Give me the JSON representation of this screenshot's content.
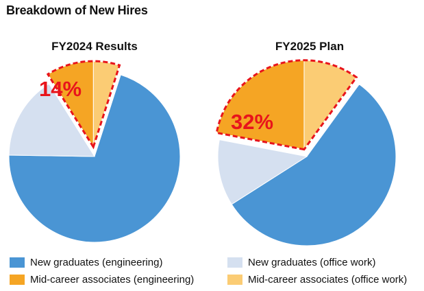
{
  "title": "Breakdown of New Hires",
  "colors": {
    "new_grad_eng": "#4a95d4",
    "new_grad_office": "#d5e0f0",
    "mid_eng": "#f5a524",
    "mid_office": "#fbcc74",
    "highlight": "#e8141b"
  },
  "legend": [
    {
      "label": "New graduates (engineering)",
      "color": "#4a95d4"
    },
    {
      "label": "New graduates (office work)",
      "color": "#d5e0f0"
    },
    {
      "label": "Mid-career associates (engineering)",
      "color": "#f5a524"
    },
    {
      "label": "Mid-career associates (office work)",
      "color": "#fbcc74"
    }
  ],
  "chart_data": [
    {
      "type": "pie",
      "title": "FY2024 Results",
      "categories": [
        "Mid-career associates (office work)",
        "New graduates (engineering)",
        "New graduates (office work)",
        "Mid-career associates (engineering)"
      ],
      "values": [
        5,
        71,
        16,
        9
      ],
      "colors": [
        "#fbcc74",
        "#4a95d4",
        "#d5e0f0",
        "#f5a524"
      ],
      "exploded": [
        0,
        3
      ],
      "highlight_label": "14%",
      "legend_position": "bottom"
    },
    {
      "type": "pie",
      "title": "FY2025 Plan",
      "categories": [
        "Mid-career associates (office work)",
        "New graduates (engineering)",
        "New graduates (office work)",
        "Mid-career associates (engineering)"
      ],
      "values": [
        10,
        56,
        12,
        22
      ],
      "colors": [
        "#fbcc74",
        "#4a95d4",
        "#d5e0f0",
        "#f5a524"
      ],
      "exploded": [
        0,
        3
      ],
      "highlight_label": "32%",
      "legend_position": "bottom"
    }
  ]
}
